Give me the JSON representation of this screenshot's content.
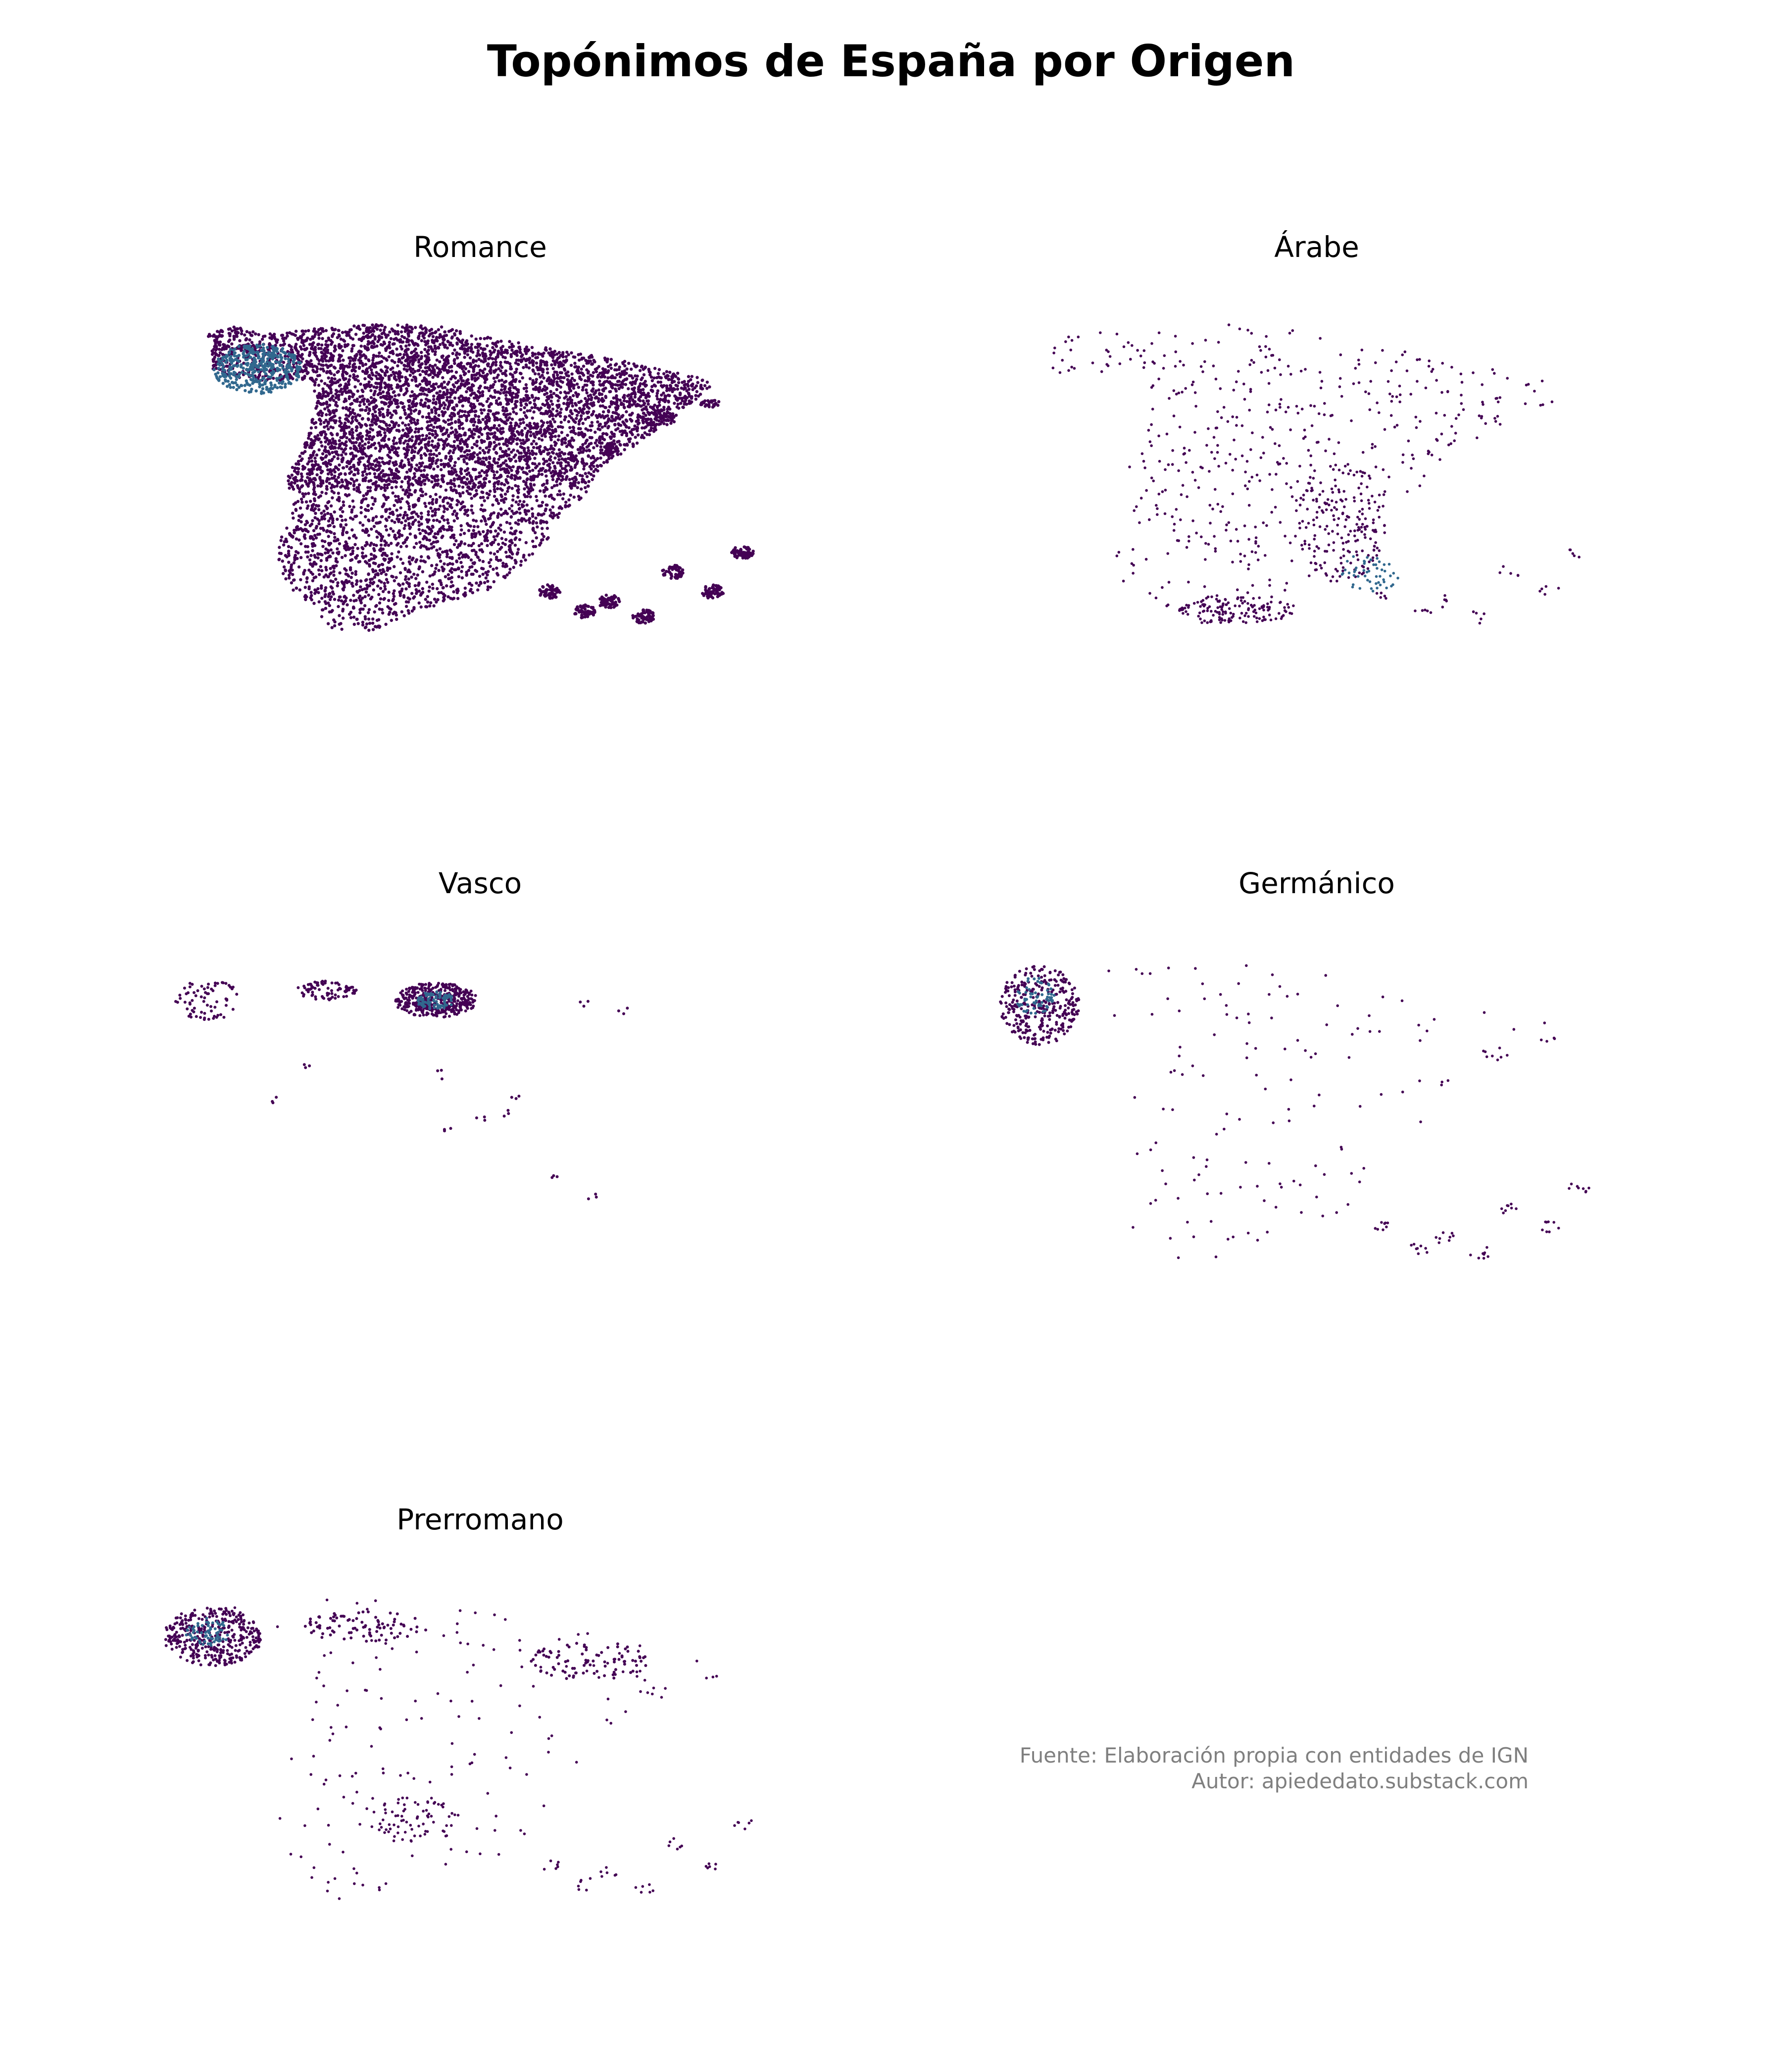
{
  "title": "Topónimos de España por Origen",
  "panels": [
    {
      "key": "romance",
      "title": "Romance"
    },
    {
      "key": "arabe",
      "title": "Árabe"
    },
    {
      "key": "vasco",
      "title": "Vasco"
    },
    {
      "key": "germanico",
      "title": "Germánico"
    },
    {
      "key": "prerromano",
      "title": "Prerromano"
    }
  ],
  "footer": {
    "source": "Fuente: Elaboración propia con entidades de IGN",
    "author": "Autor: apiededato.substack.com"
  },
  "colors": {
    "point": "#440154",
    "dense_point": "#31688e",
    "background": "#ffffff",
    "footer_text": "#7f7f7f"
  }
}
